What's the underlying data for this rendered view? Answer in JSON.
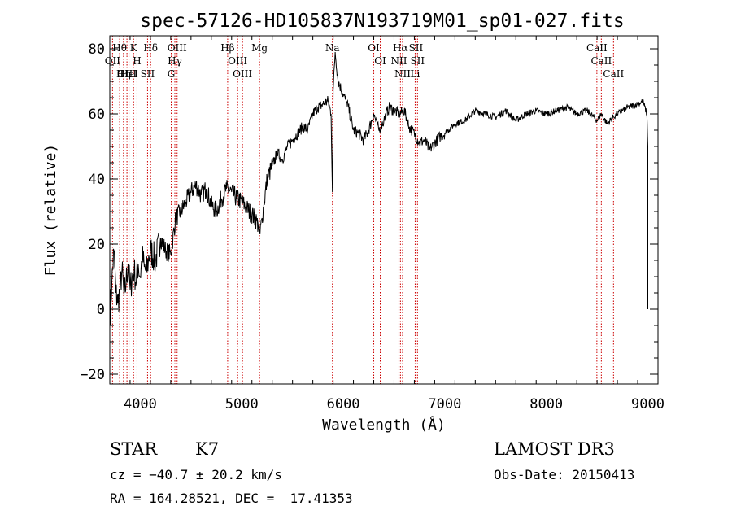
{
  "chart_data": {
    "type": "line",
    "title": "spec-57126-HD105837N193719M01_sp01-027.fits",
    "xlabel": "Wavelength (Å)",
    "ylabel": "Flux (relative)",
    "xlim": [
      3700,
      9100
    ],
    "ylim": [
      -23,
      84
    ],
    "xticks": [
      4000,
      5000,
      6000,
      7000,
      8000,
      9000
    ],
    "yticks": [
      -20,
      0,
      20,
      40,
      60,
      80
    ],
    "grid": false,
    "line_color": "#000000",
    "marker_color": "#cc0000",
    "series": [
      {
        "x": [
          3700,
          3720,
          3740,
          3760,
          3780,
          3800,
          3820,
          3840,
          3860,
          3880,
          3900,
          3920,
          3940,
          3960,
          3980,
          4000,
          4020,
          4040,
          4060,
          4080,
          4100,
          4150,
          4200,
          4250,
          4300,
          4350,
          4400,
          4450,
          4500,
          4550,
          4600,
          4650,
          4700,
          4750,
          4800,
          4850,
          4900,
          4950,
          5000,
          5050,
          5100,
          5150,
          5180,
          5200,
          5250,
          5300,
          5350,
          5400,
          5450,
          5500,
          5550,
          5600,
          5650,
          5700,
          5750,
          5800,
          5850,
          5880,
          5893,
          5900,
          5920,
          5950,
          6000,
          6050,
          6100,
          6150,
          6200,
          6250,
          6300,
          6350,
          6400,
          6450,
          6500,
          6550,
          6600,
          6650,
          6700,
          6750,
          6800,
          6850,
          6900,
          6950,
          7000,
          7100,
          7200,
          7300,
          7400,
          7500,
          7600,
          7700,
          7800,
          7900,
          8000,
          8100,
          8200,
          8300,
          8400,
          8500,
          8540,
          8600,
          8660,
          8700,
          8800,
          8900,
          8950,
          8990,
          9000,
          9000
        ],
        "y": [
          -2,
          8,
          18,
          5,
          2,
          6,
          12,
          4,
          8,
          14,
          6,
          10,
          12,
          8,
          14,
          10,
          16,
          13,
          11,
          15,
          18,
          15,
          22,
          18,
          17,
          28,
          30,
          33,
          36,
          38,
          35,
          37,
          32,
          30,
          34,
          37,
          36,
          34,
          33,
          31,
          29,
          27,
          23,
          28,
          40,
          44,
          48,
          46,
          50,
          52,
          54,
          56,
          55,
          60,
          62,
          63,
          64,
          60,
          36,
          67,
          79,
          70,
          66,
          62,
          55,
          54,
          52,
          55,
          60,
          55,
          58,
          62,
          61,
          60,
          61,
          56,
          54,
          51,
          52,
          49,
          51,
          53,
          54,
          57,
          58,
          61,
          60,
          59,
          61,
          58,
          60,
          61,
          60,
          61,
          62,
          60,
          61,
          58,
          60,
          57,
          59,
          60,
          62,
          63,
          64,
          60,
          50,
          0
        ]
      }
    ],
    "lines": [
      {
        "name": "Hθ",
        "x": 3797
      },
      {
        "name": "OII",
        "x": 3727
      },
      {
        "name": "OIII",
        "x": 3869
      },
      {
        "name": "HeI",
        "x": 3889
      },
      {
        "name": "Hη",
        "x": 3835
      },
      {
        "name": "K",
        "x": 3934
      },
      {
        "name": "H",
        "x": 3968
      },
      {
        "name": "Hδ",
        "x": 4102
      },
      {
        "name": "SII",
        "x": 4072
      },
      {
        "name": "OIII",
        "x": 4363
      },
      {
        "name": "Hγ",
        "x": 4341
      },
      {
        "name": "G",
        "x": 4305
      },
      {
        "name": "Hβ",
        "x": 4861
      },
      {
        "name": "OIII",
        "x": 4959
      },
      {
        "name": "OIII",
        "x": 5007
      },
      {
        "name": "Mg",
        "x": 5175
      },
      {
        "name": "Na",
        "x": 5893
      },
      {
        "name": "OI",
        "x": 6300
      },
      {
        "name": "OI",
        "x": 6364
      },
      {
        "name": "Hα",
        "x": 6563
      },
      {
        "name": "NII",
        "x": 6548
      },
      {
        "name": "NII",
        "x": 6584
      },
      {
        "name": "SII",
        "x": 6716
      },
      {
        "name": "SII",
        "x": 6731
      },
      {
        "name": "Li",
        "x": 6708
      },
      {
        "name": "CaII",
        "x": 8498
      },
      {
        "name": "CaII",
        "x": 8542
      },
      {
        "name": "CaII",
        "x": 8662
      }
    ]
  },
  "info": {
    "class_label": "STAR",
    "subclass": "K7",
    "cz": "cz = −40.7 ± 20.2 km/s",
    "radec": "RA = 164.28521, DEC =  17.41353",
    "survey": "LAMOST DR3",
    "obs_date": "Obs-Date: 20150413"
  }
}
